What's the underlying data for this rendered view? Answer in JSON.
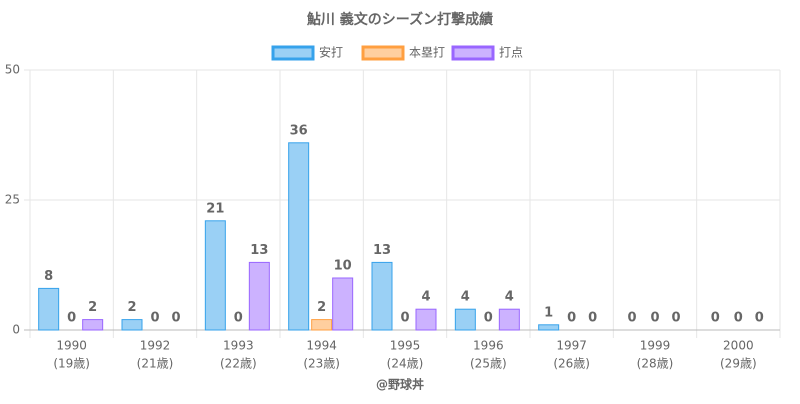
{
  "chart_data": {
    "type": "bar",
    "title": "鮎川 義文のシーズン打撃成績",
    "categories": [
      "1990",
      "1992",
      "1993",
      "1994",
      "1995",
      "1996",
      "1997",
      "1999",
      "2000"
    ],
    "category_sublabels": [
      "(19歳)",
      "(21歳)",
      "(22歳)",
      "(23歳)",
      "(24歳)",
      "(25歳)",
      "(26歳)",
      "(28歳)",
      "(29歳)"
    ],
    "series": [
      {
        "name": "安打",
        "color": "#9ad0f5",
        "border": "#36a2eb",
        "values": [
          8,
          2,
          21,
          36,
          13,
          4,
          1,
          0,
          0
        ]
      },
      {
        "name": "本塁打",
        "color": "#ffcf9f",
        "border": "#ff9f40",
        "values": [
          0,
          0,
          0,
          2,
          0,
          0,
          0,
          0,
          0
        ]
      },
      {
        "name": "打点",
        "color": "#ccb2ff",
        "border": "#9966ff",
        "values": [
          2,
          0,
          13,
          10,
          4,
          4,
          0,
          0,
          0
        ]
      }
    ],
    "ylim": [
      0,
      50
    ],
    "yticks": [
      0,
      25,
      50
    ],
    "grid": true,
    "legend": "top",
    "footer": "@野球丼"
  }
}
